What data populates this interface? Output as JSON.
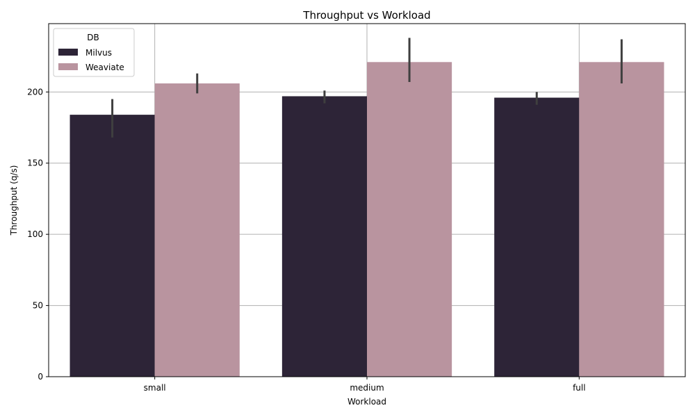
{
  "chart_data": {
    "type": "bar",
    "title": "Throughput vs Workload",
    "xlabel": "Workload",
    "ylabel": "Throughput (q/s)",
    "categories": [
      "small",
      "medium",
      "full"
    ],
    "ylim": [
      0,
      248
    ],
    "yticks": [
      0,
      50,
      100,
      150,
      200
    ],
    "grid": true,
    "legend": {
      "title": "DB",
      "placement": "top-left"
    },
    "series": [
      {
        "name": "Milvus",
        "color": "#2d2437",
        "values": [
          184,
          197,
          196
        ],
        "error_low": [
          168,
          192,
          191
        ],
        "error_high": [
          195,
          201,
          200
        ]
      },
      {
        "name": "Weaviate",
        "color": "#b9949f",
        "values": [
          206,
          221,
          221
        ],
        "error_low": [
          199,
          207,
          206
        ],
        "error_high": [
          213,
          238,
          237
        ]
      }
    ],
    "errorbar_color": "#3f3f3f"
  }
}
